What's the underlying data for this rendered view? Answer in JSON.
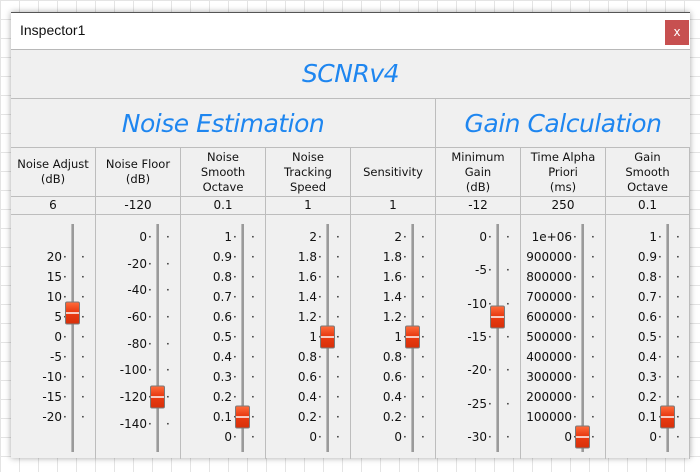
{
  "window": {
    "title": "Inspector1",
    "close_label": "x"
  },
  "header": {
    "title": "SCNRv4"
  },
  "sections": [
    {
      "label": "Noise Estimation"
    },
    {
      "label": "Gain Calculation"
    }
  ],
  "accent_color": "#1e86f0",
  "thumb_color": "#e83a10",
  "controls": [
    {
      "label": "Noise Adjust\n(dB)",
      "value": "6",
      "num": 6,
      "min": -25,
      "max": 25,
      "ticks": [
        "20",
        "15",
        "10",
        "5",
        "0",
        "-5",
        "-10",
        "-15",
        "-20"
      ]
    },
    {
      "label": "Noise Floor\n(dB)",
      "value": "-120",
      "num": -120,
      "min": -150,
      "max": 0,
      "ticks": [
        "0",
        "-20",
        "-40",
        "-60",
        "-80",
        "-100",
        "-120",
        "-140"
      ]
    },
    {
      "label": "Noise\nSmooth\nOctave",
      "value": "0.1",
      "num": 0.1,
      "min": 0,
      "max": 1,
      "ticks": [
        "1",
        "0.9",
        "0.8",
        "0.7",
        "0.6",
        "0.5",
        "0.4",
        "0.3",
        "0.2",
        "0.1",
        "0"
      ]
    },
    {
      "label": "Noise\nTracking\nSpeed",
      "value": "1",
      "num": 1,
      "min": 0,
      "max": 2,
      "ticks": [
        "2",
        "1.8",
        "1.6",
        "1.4",
        "1.2",
        "1",
        "0.8",
        "0.6",
        "0.4",
        "0.2",
        "0"
      ]
    },
    {
      "label": "Sensitivity",
      "value": "1",
      "num": 1,
      "min": 0,
      "max": 2,
      "ticks": [
        "2",
        "1.8",
        "1.6",
        "1.4",
        "1.2",
        "1",
        "0.8",
        "0.6",
        "0.4",
        "0.2",
        "0"
      ]
    },
    {
      "label": "Minimum\nGain\n(dB)",
      "value": "-12",
      "num": -12,
      "min": -30,
      "max": 0,
      "ticks": [
        "0",
        "-5",
        "-10",
        "-15",
        "-20",
        "-25",
        "-30"
      ]
    },
    {
      "label": "Time Alpha\nPriori\n(ms)",
      "value": "250",
      "num": 250,
      "min": 0,
      "max": 1000000,
      "ticks": [
        "1e+06",
        "900000",
        "800000",
        "700000",
        "600000",
        "500000",
        "400000",
        "300000",
        "200000",
        "100000",
        "0"
      ]
    },
    {
      "label": "Gain\nSmooth\nOctave",
      "value": "0.1",
      "num": 0.1,
      "min": 0,
      "max": 1,
      "ticks": [
        "1",
        "0.9",
        "0.8",
        "0.7",
        "0.6",
        "0.5",
        "0.4",
        "0.3",
        "0.2",
        "0.1",
        "0"
      ]
    }
  ]
}
